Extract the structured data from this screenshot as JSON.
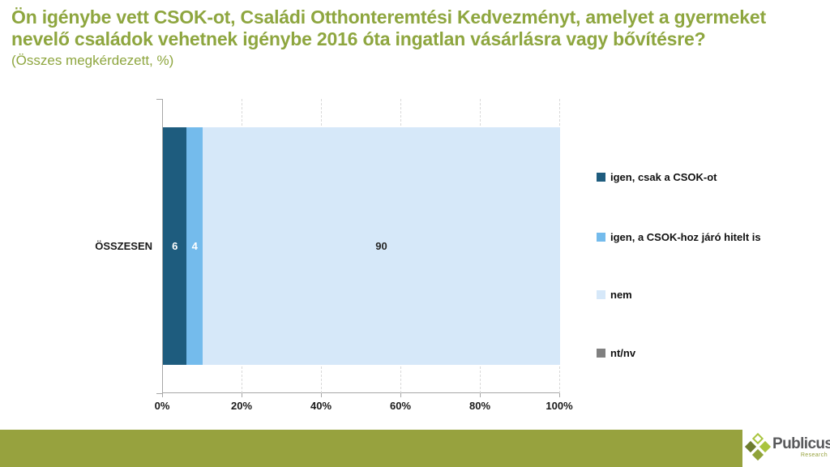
{
  "header": {
    "title": "Ön igénybe vett CSOK-ot, Családi Otthonteremtési Kedvezményt, amelyet a gyermeket nevelő családok vehetnek igénybe 2016 óta ingatlan vásárlásra vagy bővítésre?",
    "subtitle": "(Összes megkérdezett, %)",
    "title_color": "#8EA63F"
  },
  "chart_data": {
    "type": "bar",
    "orientation": "horizontal-stacked",
    "title": "Ön igénybe vett CSOK-ot, Családi Otthonteremtési Kedvezményt, amelyet a gyermeket nevelő családok vehetnek igénybe 2016 óta ingatlan vásárlásra vagy bővítésre?",
    "subtitle": "(Összes megkérdezett, %)",
    "categories": [
      "ÖSSZESEN"
    ],
    "series": [
      {
        "name": "igen, csak a CSOK-ot",
        "values": [
          6
        ],
        "color": "#1E5C7E",
        "label_color": "#FFFFFF"
      },
      {
        "name": "igen, a CSOK-hoz járó hitelt is",
        "values": [
          4
        ],
        "color": "#74BBEC",
        "label_color": "#FFFFFF"
      },
      {
        "name": "nem",
        "values": [
          90
        ],
        "color": "#D6E8F9",
        "label_color": "#262626"
      },
      {
        "name": "nt/nv",
        "values": [
          0
        ],
        "color": "#808080",
        "label_color": "#FFFFFF"
      }
    ],
    "x_ticks": [
      "0%",
      "20%",
      "40%",
      "60%",
      "80%",
      "100%"
    ],
    "xlim": [
      0,
      100
    ],
    "grid": "vertical-dashed",
    "legend_position": "right"
  },
  "footer": {
    "brand": "Publicus",
    "brand_sub": "Research",
    "bar_color": "#97A23E"
  }
}
